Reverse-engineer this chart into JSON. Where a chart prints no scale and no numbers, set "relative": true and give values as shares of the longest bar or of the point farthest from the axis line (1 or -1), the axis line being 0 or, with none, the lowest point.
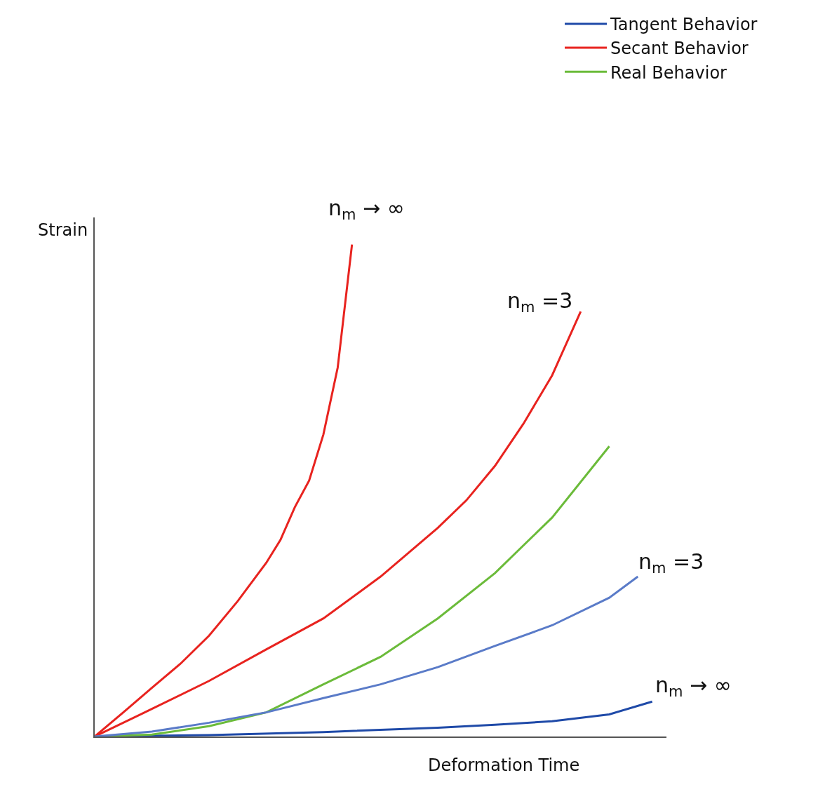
{
  "chart_data": {
    "type": "line",
    "relative": true,
    "xlabel": "Deformation Time",
    "ylabel": "Strain",
    "categories": [
      null,
      null,
      null,
      null,
      null,
      null,
      null,
      null,
      null,
      null,
      null,
      null,
      null,
      null,
      null,
      null,
      null,
      null,
      null,
      null,
      null,
      null,
      null,
      null,
      null,
      null,
      null,
      null,
      null,
      null,
      null,
      null,
      null,
      null,
      null,
      null,
      null,
      null,
      null,
      null,
      null
    ],
    "series": [
      {
        "name": "Tangent Behavior",
        "color": "#1f4aa8",
        "values": [
          0,
          null,
          null,
          null,
          null,
          null,
          null,
          null,
          0.003,
          null,
          null,
          null,
          null,
          null,
          null,
          null,
          0.009,
          null,
          null,
          null,
          null,
          null,
          null,
          null,
          0.018,
          null,
          null,
          null,
          0.024,
          null,
          null,
          null,
          0.031,
          null,
          null,
          null,
          0.045,
          null,
          null,
          0.071,
          null
        ]
      },
      {
        "name": "Secant Behavior",
        "color": "#e8231f",
        "values": [
          0,
          null,
          0.049,
          null,
          0.099,
          null,
          0.148,
          null,
          0.205,
          null,
          0.275,
          null,
          0.353,
          0.4,
          0.466,
          0.52,
          0.614,
          0.75,
          1,
          null,
          null,
          null,
          null,
          null,
          null,
          null,
          null,
          null,
          null,
          null,
          null,
          null,
          null,
          null,
          null,
          null,
          null,
          null,
          null,
          null,
          null
        ]
      },
      {
        "name": "Real Behavior",
        "color": "#6bbb3a",
        "values": [
          0,
          null,
          null,
          null,
          0.004,
          null,
          null,
          null,
          0.021,
          null,
          null,
          null,
          0.049,
          null,
          null,
          null,
          0.106,
          null,
          null,
          null,
          0.162,
          null,
          null,
          null,
          0.24,
          null,
          null,
          null,
          0.332,
          null,
          null,
          null,
          0.445,
          null,
          null,
          null,
          0.59,
          null,
          null,
          null,
          null
        ]
      },
      {
        "color": "#e8231f",
        "values": [
          0,
          null,
          null,
          null,
          0.056,
          null,
          null,
          null,
          0.113,
          null,
          null,
          null,
          0.177,
          null,
          null,
          null,
          0.24,
          null,
          null,
          null,
          0.325,
          null,
          null,
          null,
          0.424,
          null,
          0.48,
          null,
          0.55,
          null,
          0.636,
          null,
          0.734,
          null,
          0.864,
          null,
          null,
          null,
          null,
          null,
          null
        ]
      },
      {
        "color": "#5a7bc8",
        "values": [
          0,
          null,
          null,
          null,
          0.01,
          null,
          null,
          null,
          0.028,
          null,
          null,
          null,
          0.049,
          null,
          null,
          null,
          0.078,
          null,
          null,
          null,
          0.106,
          null,
          null,
          null,
          0.141,
          null,
          null,
          null,
          0.184,
          null,
          null,
          null,
          0.226,
          null,
          null,
          null,
          0.282,
          null,
          0.325,
          null,
          null
        ]
      }
    ],
    "annotations": [
      "n$_{m}$ → ∞",
      "n$_{m}$ =3",
      "n$_{m}$ =3",
      "n$_{m}$ → ∞"
    ],
    "legend": "top right"
  }
}
